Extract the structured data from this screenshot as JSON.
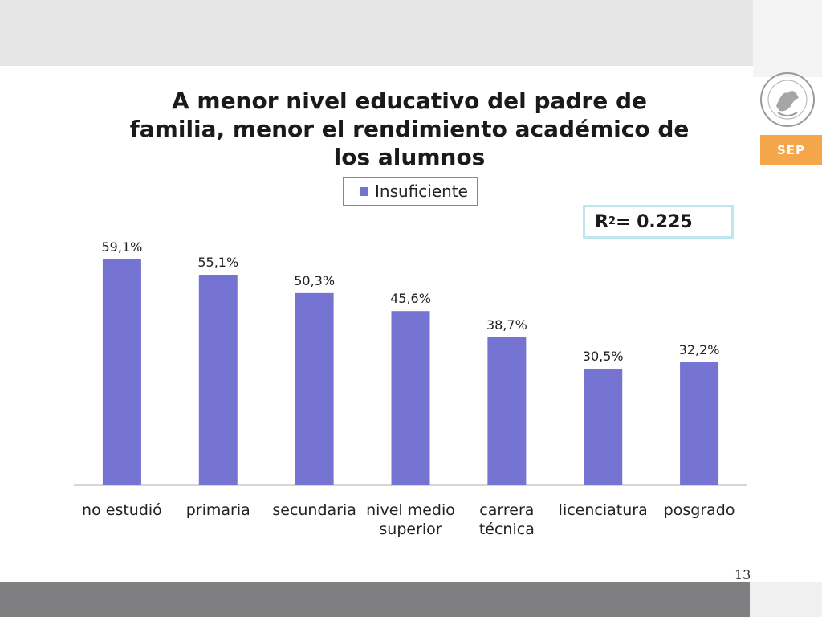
{
  "slide": {
    "title": "A menor nivel educativo del padre de familia, menor el rendimiento académico de los alumnos",
    "badge": "SEP",
    "page_number": "13"
  },
  "r2": {
    "label": "R",
    "exp": "2",
    "value": "= 0.225"
  },
  "colors": {
    "bar": "#7574d2",
    "axis": "#c8c8c8",
    "badge": "#f5a54a",
    "r2_border": "#bfe5ef"
  },
  "chart_data": {
    "type": "bar",
    "categories": [
      [
        "no estudió"
      ],
      [
        "primaria"
      ],
      [
        "secundaria"
      ],
      [
        "nivel medio",
        "superior"
      ],
      [
        "carrera",
        "técnica"
      ],
      [
        "licenciatura"
      ],
      [
        "posgrado"
      ]
    ],
    "series": [
      {
        "name": "Insuficiente",
        "values": [
          59.1,
          55.1,
          50.3,
          45.6,
          38.7,
          30.5,
          32.2
        ]
      }
    ],
    "data_labels": [
      "59,1%",
      "55,1%",
      "50,3%",
      "45,6%",
      "38,7%",
      "30,5%",
      "32,2%"
    ],
    "title": "",
    "xlabel": "",
    "ylabel": "",
    "ylim": [
      0,
      59.1
    ],
    "grid": false,
    "legend": "top"
  }
}
